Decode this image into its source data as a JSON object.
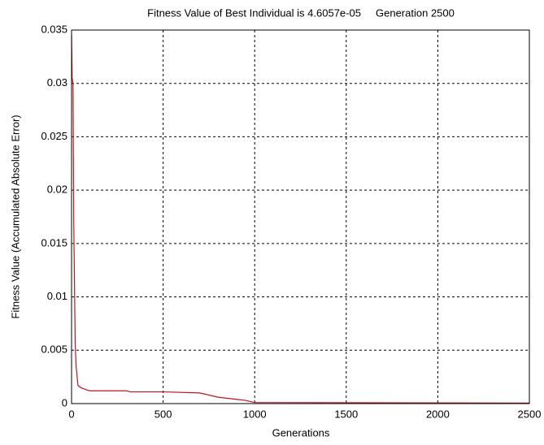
{
  "chart_data": {
    "type": "line",
    "title": "Fitness Value of Best Individual is 4.6057e-05     Generation 2500",
    "x_label": "Generations",
    "y_label": "Fitness Value (Accumulated Absolute Error)",
    "xlim": [
      0,
      2500
    ],
    "ylim": [
      0,
      0.035
    ],
    "xticks": [
      0,
      500,
      1000,
      1500,
      2000,
      2500
    ],
    "yticks": [
      0,
      0.005,
      0.01,
      0.015,
      0.02,
      0.025,
      0.03,
      0.035
    ],
    "grid": true,
    "series": [
      {
        "color": "#c0141e",
        "x": [
          0,
          3,
          8,
          12,
          20,
          25,
          35,
          50,
          80,
          100,
          300,
          320,
          500,
          700,
          750,
          800,
          900,
          950,
          1000,
          2500
        ],
        "values": [
          0.0345,
          0.0305,
          0.03,
          0.017,
          0.0055,
          0.0035,
          0.0017,
          0.0015,
          0.0013,
          0.0012,
          0.0012,
          0.0011,
          0.0011,
          0.001,
          0.0008,
          0.0006,
          0.0004,
          0.0003,
          0.0001,
          5e-05
        ]
      }
    ]
  }
}
